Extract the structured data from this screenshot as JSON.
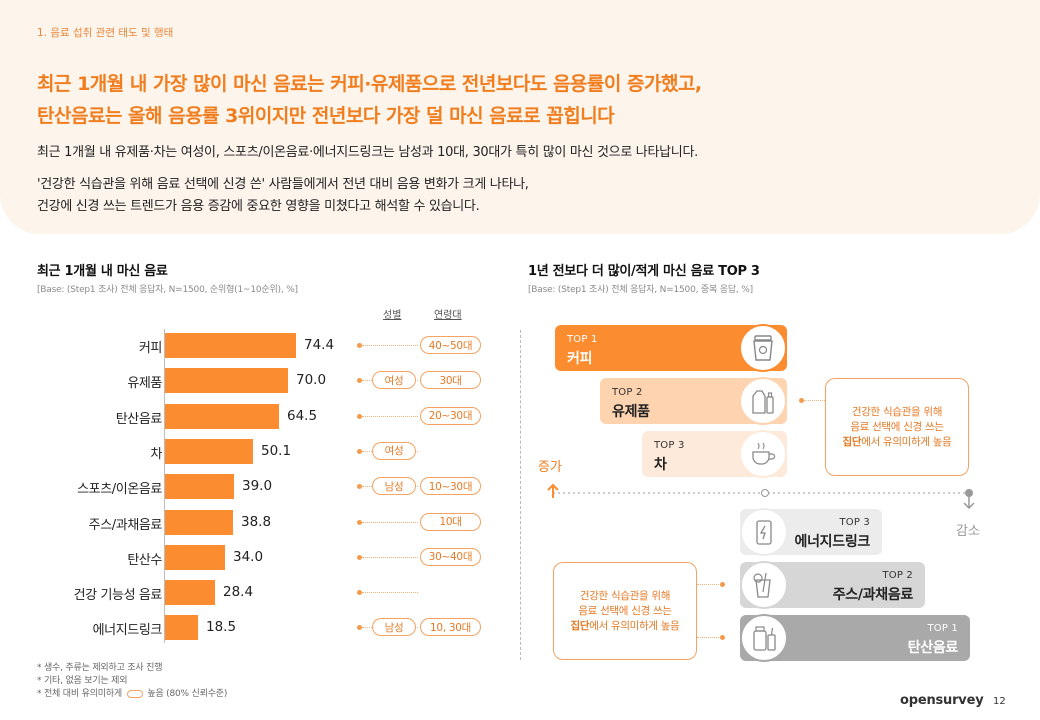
{
  "section_label": "1. 음료 섭취 관련 태도 및 행태",
  "headline": {
    "line1": "최근 1개월 내 가장 많이 마신 음료는 커피·유제품으로 전년보다도 음용률이 증가했고,",
    "line2": "탄산음료는 올해 음용률 3위이지만 전년보다 가장 덜 마신 음료로 꼽힙니다"
  },
  "description": {
    "para1": "최근 1개월 내 유제품·차는 여성이, 스포츠/이온음료·에너지드링크는 남성과 10대, 30대가 특히 많이 마신 것으로 나타납니다.",
    "para2_line1": "'건강한 식습관을 위해 음료 선택에 신경 쓴' 사람들에게서 전년 대비 음용 변화가 크게 나타나,",
    "para2_line2": "건강에 신경 쓰는 트렌드가 음용 증감에 중요한 영향을 미쳤다고 해석할 수 있습니다."
  },
  "left_chart": {
    "title": "최근 1개월 내 마신 음료",
    "base": "[Base: (Step1 조사) 전체 응답자, N=1500, 순위형(1~10순위), %]",
    "col_gender": "성별",
    "col_age": "연령대"
  },
  "chart_data": {
    "type": "bar",
    "orientation": "horizontal",
    "title": "최근 1개월 내 마신 음료",
    "categories": [
      "커피",
      "유제품",
      "탄산음료",
      "차",
      "스포츠/이온음료",
      "주스/과채음료",
      "탄산수",
      "건강 기능성 음료",
      "에너지드링크"
    ],
    "values": [
      74.4,
      70.0,
      64.5,
      50.1,
      39.0,
      38.8,
      34.0,
      28.4,
      18.5
    ],
    "value_labels": [
      "74.4",
      "70.0",
      "64.5",
      "50.1",
      "39.0",
      "38.8",
      "34.0",
      "28.4",
      "18.5"
    ],
    "xlim": [
      0,
      100
    ],
    "gender": [
      "",
      "여성",
      "",
      "여성",
      "남성",
      "",
      "",
      "",
      "남성"
    ],
    "age": [
      "40~50대",
      "30대",
      "20~30대",
      "",
      "10~30대",
      "10대",
      "30~40대",
      "",
      "10, 30대"
    ]
  },
  "right_chart": {
    "title": "1년 전보다 더 많이/적게 마신 음료 TOP 3",
    "base": "[Base: (Step1 조사) 전체 응답자, N=1500, 중복 응답, %]",
    "increase_label": "증가",
    "decrease_label": "감소",
    "increase": [
      {
        "rank": "TOP 1",
        "name": "커피"
      },
      {
        "rank": "TOP 2",
        "name": "유제품"
      },
      {
        "rank": "TOP 3",
        "name": "차"
      }
    ],
    "decrease": [
      {
        "rank": "TOP 3",
        "name": "에너지드링크"
      },
      {
        "rank": "TOP 2",
        "name": "주스/과채음료"
      },
      {
        "rank": "TOP 1",
        "name": "탄산음료"
      }
    ],
    "note_line1": "건강한 식습관을 위해",
    "note_line2": "음료 선택에 신경 쓰는",
    "note_bold": "집단",
    "note_tail": "에서 유의미하게 높음"
  },
  "footnotes": {
    "f1": "* 생수, 주류는 제외하고 조사 진행",
    "f2": "* 기타, 없음 보기는 제외",
    "f3_pre": "* 전체 대비 유의미하게",
    "f3_post": "높음 (80% 신뢰수준)"
  },
  "brand": "opensurvey",
  "page_number": "12",
  "colors": {
    "accent": "#fb8c2f",
    "headline": "#f07e1f",
    "hero_bg": "#fdf4ec"
  },
  "icons": [
    "coffee-cup-icon",
    "milk-bottles-icon",
    "tea-cup-icon",
    "energy-drink-icon",
    "juice-glass-icon",
    "soda-can-icon"
  ]
}
